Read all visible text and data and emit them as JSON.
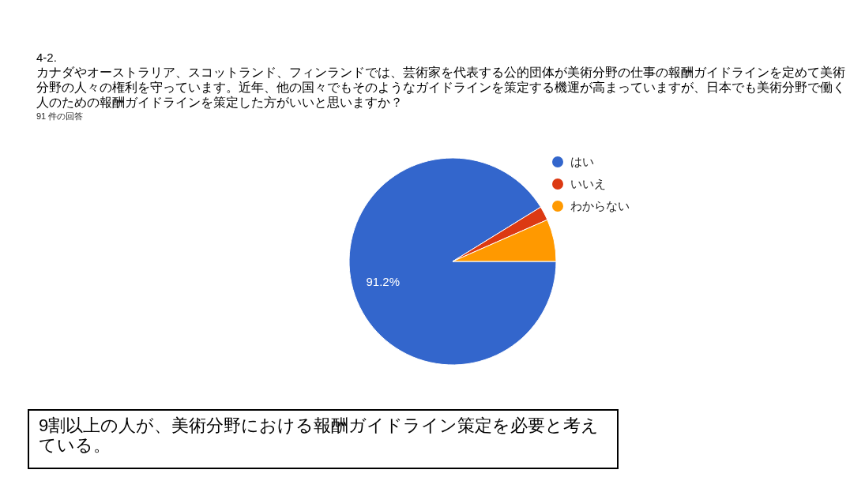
{
  "chart_data": {
    "type": "pie",
    "title": "4-2.",
    "subtitle": "カナダやオーストラリア、スコットランド、フィンランドでは、芸術家を代表する公的団体が美術分野の仕事の報酬ガイドラインを定めて美術分野の人々の権利を守っています。近年、他の国々でもそのようなガイドラインを策定する機運が高まっていますが、日本でも美術分野で働く人のための報酬ガイドラインを策定した方がいいと思いますか？",
    "annotations": [
      "91 件の回答",
      "9割以上の人が、美術分野における報酬ガイドライン策定を必要と考えている。"
    ],
    "categories": [
      "はい",
      "いいえ",
      "わからない"
    ],
    "values": [
      91.2,
      2.2,
      6.6
    ],
    "value_labels": [
      "91.2%",
      null,
      null
    ],
    "colors": [
      "#3366cc",
      "#dc3912",
      "#ff9900"
    ],
    "legend": "top right"
  }
}
